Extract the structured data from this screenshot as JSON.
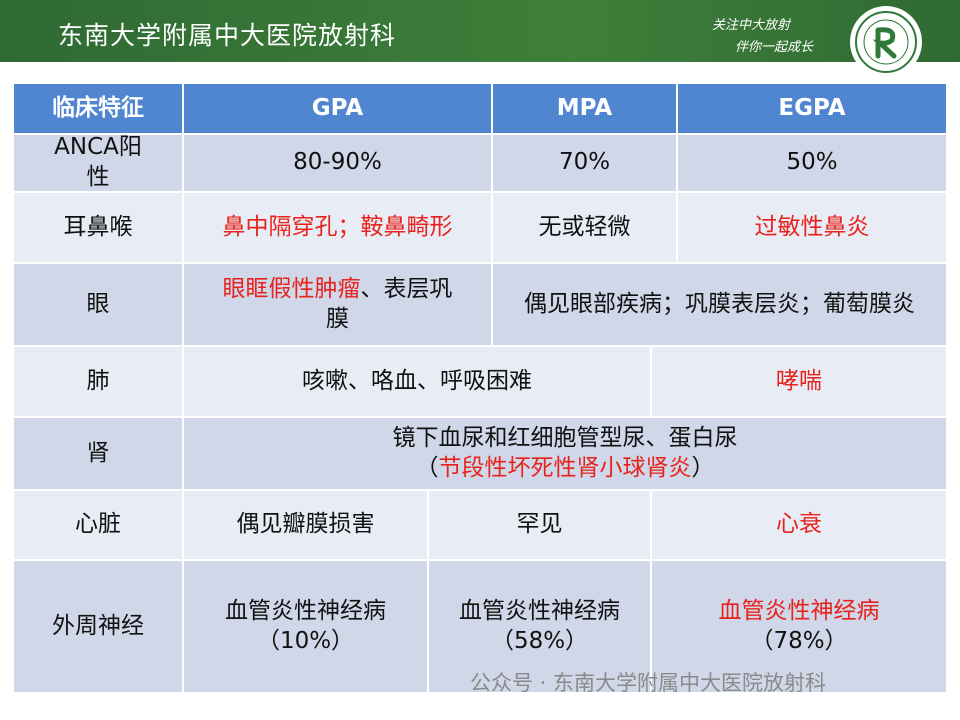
{
  "header": {
    "title": "东南大学附属中大医院放射科",
    "slogan": [
      "关注中大放射",
      "伴你一起成长"
    ]
  },
  "table": {
    "columns": [
      "临床特征",
      "GPA",
      "MPA",
      "EGPA"
    ],
    "red": "#e8221c",
    "rows": [
      {
        "label": "ANCA阳性",
        "cells": [
          [
            [
              {
                "text": "80-90%"
              }
            ]
          ],
          [
            [
              {
                "text": "70%"
              }
            ]
          ],
          [
            [
              {
                "text": "50%"
              }
            ]
          ]
        ]
      },
      {
        "label": "耳鼻喉",
        "cells": [
          [
            [
              {
                "text": "鼻中隔穿孔；鞍鼻畸形",
                "red": true
              }
            ]
          ],
          [
            [
              {
                "text": "无或轻微"
              }
            ]
          ],
          [
            [
              {
                "text": "过敏性鼻炎",
                "red": true
              }
            ]
          ]
        ]
      },
      {
        "label": "眼",
        "cells": [
          [
            [
              {
                "text": "眼眶假性肿瘤",
                "red": true
              },
              {
                "text": "、表层巩膜"
              }
            ]
          ],
          [
            [
              {
                "text": "偶见眼部疾病；巩膜表层炎；葡萄膜炎"
              }
            ]
          ]
        ]
      },
      {
        "label": "肺",
        "cells": [
          [
            [
              {
                "text": "咳嗽、咯血、呼吸困难"
              }
            ]
          ],
          [
            [
              {
                "text": "哮喘",
                "red": true
              }
            ]
          ]
        ]
      },
      {
        "label": "肾",
        "cells": [
          [
            [
              {
                "text": "镜下血尿和红细胞管型尿、蛋白尿"
              }
            ],
            [
              {
                "text": "（"
              },
              {
                "text": "节段性坏死性肾小球肾炎",
                "red": true
              },
              {
                "text": "）"
              }
            ]
          ]
        ]
      },
      {
        "label": "心脏",
        "cells": [
          [
            [
              {
                "text": "偶见瓣膜损害"
              }
            ]
          ],
          [
            [
              {
                "text": "罕见"
              }
            ]
          ],
          [
            [
              {
                "text": "心衰",
                "red": true
              }
            ]
          ]
        ]
      },
      {
        "label": "外周神经",
        "cells": [
          [
            [
              {
                "text": "血管炎性神经病"
              }
            ],
            [
              {
                "text": "（10%）"
              }
            ]
          ],
          [
            [
              {
                "text": "血管炎性神经病"
              }
            ],
            [
              {
                "text": "（58%）"
              }
            ]
          ],
          [
            [
              {
                "text": "血管炎性神经病",
                "red": true
              }
            ],
            [
              {
                "text": "（78%）"
              }
            ]
          ]
        ]
      }
    ]
  },
  "watermark": "公众号 · 东南大学附属中大医院放射科"
}
